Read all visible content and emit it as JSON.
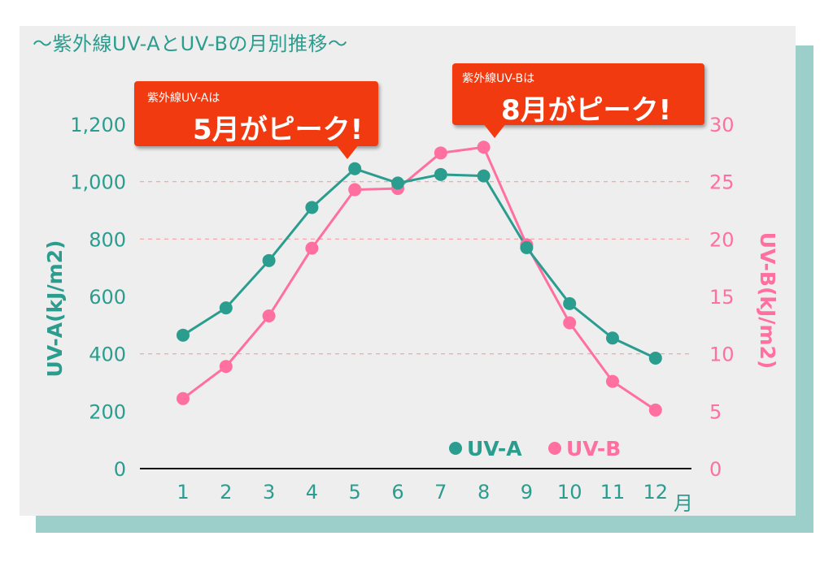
{
  "title": "〜紫外線UV-AとUV-Bの月別推移〜",
  "callouts": {
    "uva": {
      "line1": "紫外線UV-Aは",
      "line2": "5月がピーク!"
    },
    "uvb": {
      "line1": "紫外線UV-Bは",
      "line2": "8月がピーク!"
    }
  },
  "colors": {
    "uva": "#2a9d8f",
    "uvb": "#ff6fa0",
    "callout": "#f23a10"
  },
  "chart_data": {
    "type": "line",
    "categories": [
      "1",
      "2",
      "3",
      "4",
      "5",
      "6",
      "7",
      "8",
      "9",
      "10",
      "11",
      "12"
    ],
    "x_unit": "月",
    "series": [
      {
        "name": "UV-A",
        "axis": "left",
        "values": [
          465,
          560,
          725,
          910,
          1045,
          995,
          1025,
          1020,
          770,
          575,
          455,
          385
        ]
      },
      {
        "name": "UV-B",
        "axis": "right",
        "values": [
          6.1,
          8.9,
          13.3,
          19.2,
          24.3,
          24.4,
          27.5,
          28.0,
          19.5,
          12.7,
          7.6,
          5.1
        ]
      }
    ],
    "ylabel_left": "UV-A(kJ/m2)",
    "ylabel_right": "UV-B(kJ/m2)",
    "ylim_left": [
      0,
      1200
    ],
    "ylim_right": [
      0,
      30
    ],
    "yticks_left": [
      "0",
      "200",
      "400",
      "600",
      "800",
      "1,000",
      "1,200"
    ],
    "yticks_right": [
      "0",
      "5",
      "10",
      "15",
      "20",
      "25",
      "30"
    ],
    "legend": [
      "UV-A",
      "UV-B"
    ],
    "legend_position": "bottom-right",
    "grid": "dashed at 400, 800, 1,000"
  }
}
